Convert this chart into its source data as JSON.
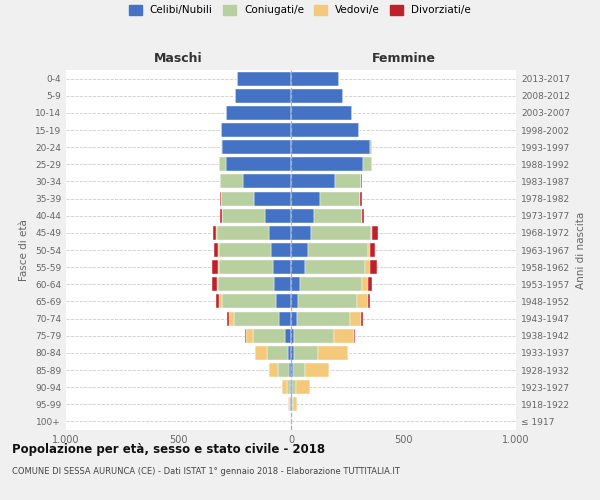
{
  "age_groups": [
    "100+",
    "95-99",
    "90-94",
    "85-89",
    "80-84",
    "75-79",
    "70-74",
    "65-69",
    "60-64",
    "55-59",
    "50-54",
    "45-49",
    "40-44",
    "35-39",
    "30-34",
    "25-29",
    "20-24",
    "15-19",
    "10-14",
    "5-9",
    "0-4"
  ],
  "birth_years": [
    "≤ 1917",
    "1918-1922",
    "1923-1927",
    "1928-1932",
    "1933-1937",
    "1938-1942",
    "1943-1947",
    "1948-1952",
    "1953-1957",
    "1958-1962",
    "1963-1967",
    "1968-1972",
    "1973-1977",
    "1978-1982",
    "1983-1987",
    "1988-1992",
    "1993-1997",
    "1998-2002",
    "2003-2007",
    "2008-2012",
    "2013-2017"
  ],
  "colors": {
    "celibi": "#4472c4",
    "coniugati": "#b8cfa0",
    "vedovi": "#f5c97a",
    "divorziati": "#c0202a"
  },
  "maschi": {
    "celibi": [
      2,
      4,
      5,
      8,
      15,
      25,
      55,
      65,
      75,
      80,
      90,
      100,
      115,
      165,
      215,
      290,
      305,
      310,
      290,
      250,
      240
    ],
    "coniugati": [
      0,
      3,
      15,
      50,
      90,
      145,
      200,
      240,
      250,
      240,
      230,
      230,
      190,
      145,
      100,
      30,
      8,
      2,
      1,
      0,
      0
    ],
    "vedovi": [
      0,
      5,
      20,
      40,
      55,
      30,
      20,
      15,
      5,
      5,
      3,
      2,
      1,
      0,
      0,
      0,
      0,
      0,
      0,
      0,
      0
    ],
    "divorziati": [
      0,
      0,
      0,
      0,
      0,
      3,
      10,
      15,
      20,
      25,
      20,
      15,
      8,
      5,
      2,
      0,
      0,
      0,
      0,
      0,
      0
    ]
  },
  "femmine": {
    "celibi": [
      2,
      5,
      5,
      8,
      12,
      15,
      25,
      30,
      40,
      60,
      75,
      90,
      100,
      130,
      195,
      320,
      350,
      300,
      270,
      230,
      215
    ],
    "coniugati": [
      0,
      3,
      15,
      55,
      110,
      175,
      235,
      265,
      275,
      270,
      265,
      265,
      215,
      175,
      115,
      40,
      10,
      2,
      1,
      0,
      0
    ],
    "vedovi": [
      2,
      20,
      65,
      105,
      130,
      90,
      50,
      45,
      25,
      20,
      10,
      5,
      2,
      1,
      0,
      0,
      0,
      0,
      0,
      0,
      0
    ],
    "divorziati": [
      0,
      0,
      0,
      0,
      3,
      5,
      8,
      10,
      20,
      30,
      25,
      25,
      8,
      10,
      5,
      0,
      0,
      0,
      0,
      0,
      0
    ]
  },
  "xlim": 1000,
  "title_main": "Popolazione per età, sesso e stato civile - 2018",
  "title_sub": "COMUNE DI SESSA AURUNCA (CE) - Dati ISTAT 1° gennaio 2018 - Elaborazione TUTTITALIA.IT",
  "ylabel_left": "Fasce di età",
  "ylabel_right": "Anni di nascita",
  "xlabel_left": "Maschi",
  "xlabel_right": "Femmine",
  "legend_labels": [
    "Celibi/Nubili",
    "Coniugati/e",
    "Vedovi/e",
    "Divorziati/e"
  ],
  "bg_color": "#f0f0f0",
  "plot_bg": "#ffffff"
}
